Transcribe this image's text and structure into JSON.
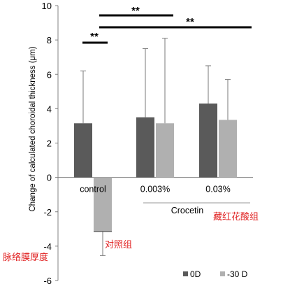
{
  "chart_data": {
    "type": "bar",
    "categories": [
      "control",
      "0.003%",
      "0.03%"
    ],
    "series": [
      {
        "name": "0D",
        "values": [
          3.15,
          3.5,
          4.3
        ],
        "error_upper": [
          3.05,
          4.0,
          2.2
        ],
        "color": "#5a5a5a"
      },
      {
        "name": "-30 D",
        "values": [
          -3.15,
          3.15,
          3.35
        ],
        "error_upper": [
          0,
          4.95,
          2.35
        ],
        "error_lower": [
          1.4,
          0,
          0
        ],
        "color": "#b0b0b0"
      }
    ],
    "ylabel": "Change of  calculated choroidal thickness (μm)",
    "ylim": [
      -6,
      10
    ],
    "yticks": [
      -6,
      -4,
      -2,
      0,
      2,
      4,
      6,
      8,
      10
    ],
    "group_label": "Crocetin",
    "significance": [
      {
        "label": "**",
        "from": "control:0D",
        "to": "control:-30 D"
      },
      {
        "label": "**",
        "from": "control",
        "to": "0.003%"
      },
      {
        "label": "**",
        "from": "control",
        "to": "0.03%"
      }
    ],
    "legend_position": "bottom-right"
  },
  "annotations": {
    "crocetin_cn": "藏红花酸组",
    "control_cn": "对照组",
    "choroid_cn": "脉络膜厚度"
  }
}
